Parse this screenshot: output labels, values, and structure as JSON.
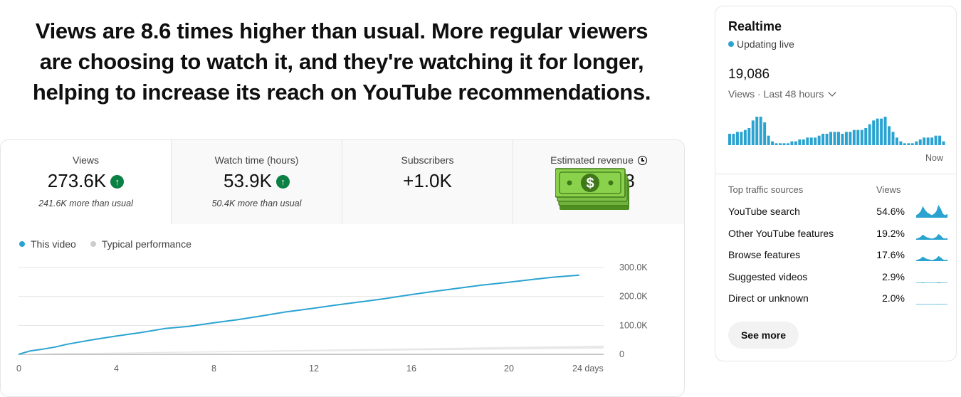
{
  "headline": {
    "line1": "Views are 8.6 times higher than usual. More regular viewers",
    "line2": "are choosing to watch it, and they're watching it for longer,",
    "line3": "helping to increase its reach on YouTube recommendations."
  },
  "metrics": [
    {
      "label": "Views",
      "value": "273.6K",
      "sub": "241.6K more than usual",
      "trend": "up"
    },
    {
      "label": "Watch time (hours)",
      "value": "53.9K",
      "sub": "50.4K more than usual",
      "trend": "up"
    },
    {
      "label": "Subscribers",
      "value": "+1.0K",
      "sub": ""
    },
    {
      "label": "Estimated revenue",
      "value": "8",
      "sub": "",
      "icon": "clock-icon"
    }
  ],
  "overlay_icon": "money-stack-icon",
  "legend": [
    {
      "label": "This video",
      "color": "#2ba3d1"
    },
    {
      "label": "Typical performance",
      "color": "#cccccc"
    }
  ],
  "colors": {
    "accent": "#2ba3d1",
    "up": "#0b8043",
    "typical_band": "#e8e8e8"
  },
  "chart_data": {
    "type": "line",
    "xlabel": "",
    "ylabel": "",
    "x_ticks": [
      "0",
      "4",
      "8",
      "12",
      "16",
      "20",
      "24 days"
    ],
    "y_ticks": [
      "0",
      "100.0K",
      "200.0K",
      "300.0K"
    ],
    "xlim": [
      0,
      24
    ],
    "ylim": [
      0,
      300000
    ],
    "series": [
      {
        "name": "This video",
        "color": "#2ba3d1",
        "x": [
          0,
          0.5,
          1,
          1.5,
          2,
          3,
          4,
          5,
          6,
          7,
          8,
          9,
          10,
          11,
          12,
          13,
          14,
          15,
          16,
          17,
          18,
          19,
          20,
          21,
          22,
          23
        ],
        "y": [
          0,
          12000,
          18000,
          25000,
          35000,
          50000,
          63000,
          75000,
          89000,
          97000,
          109000,
          120000,
          133000,
          147000,
          158000,
          170000,
          181000,
          192000,
          205000,
          217000,
          228000,
          239000,
          248000,
          258000,
          267000,
          273600
        ]
      },
      {
        "name": "Typical performance",
        "color": "#cccccc",
        "x": [
          0,
          24
        ],
        "y_low": [
          0,
          20000
        ],
        "y_high": [
          1000,
          30000
        ]
      }
    ],
    "grid": true
  },
  "realtime": {
    "title": "Realtime",
    "status": "Updating live",
    "count": "19,086",
    "period": "Views · Last 48 hours",
    "now_label": "Now",
    "bars": [
      6,
      6,
      7,
      7,
      8,
      9,
      13,
      15,
      15,
      12,
      5,
      2,
      1,
      1,
      1,
      1,
      2,
      2,
      3,
      3,
      4,
      4,
      4,
      5,
      6,
      6,
      7,
      7,
      7,
      6,
      7,
      7,
      8,
      8,
      8,
      9,
      11,
      13,
      14,
      14,
      15,
      10,
      7,
      4,
      2,
      1,
      1,
      1,
      2,
      3,
      4,
      4,
      4,
      5,
      5,
      2
    ],
    "traffic_header": {
      "label": "Top traffic sources",
      "views": "Views"
    },
    "sources": [
      {
        "label": "YouTube search",
        "pct": "54.6%",
        "level": 1.0
      },
      {
        "label": "Other YouTube features",
        "pct": "19.2%",
        "level": 0.45
      },
      {
        "label": "Browse features",
        "pct": "17.6%",
        "level": 0.4
      },
      {
        "label": "Suggested videos",
        "pct": "2.9%",
        "level": 0.06
      },
      {
        "label": "Direct or unknown",
        "pct": "2.0%",
        "level": 0.04
      }
    ],
    "see_more": "See more"
  }
}
